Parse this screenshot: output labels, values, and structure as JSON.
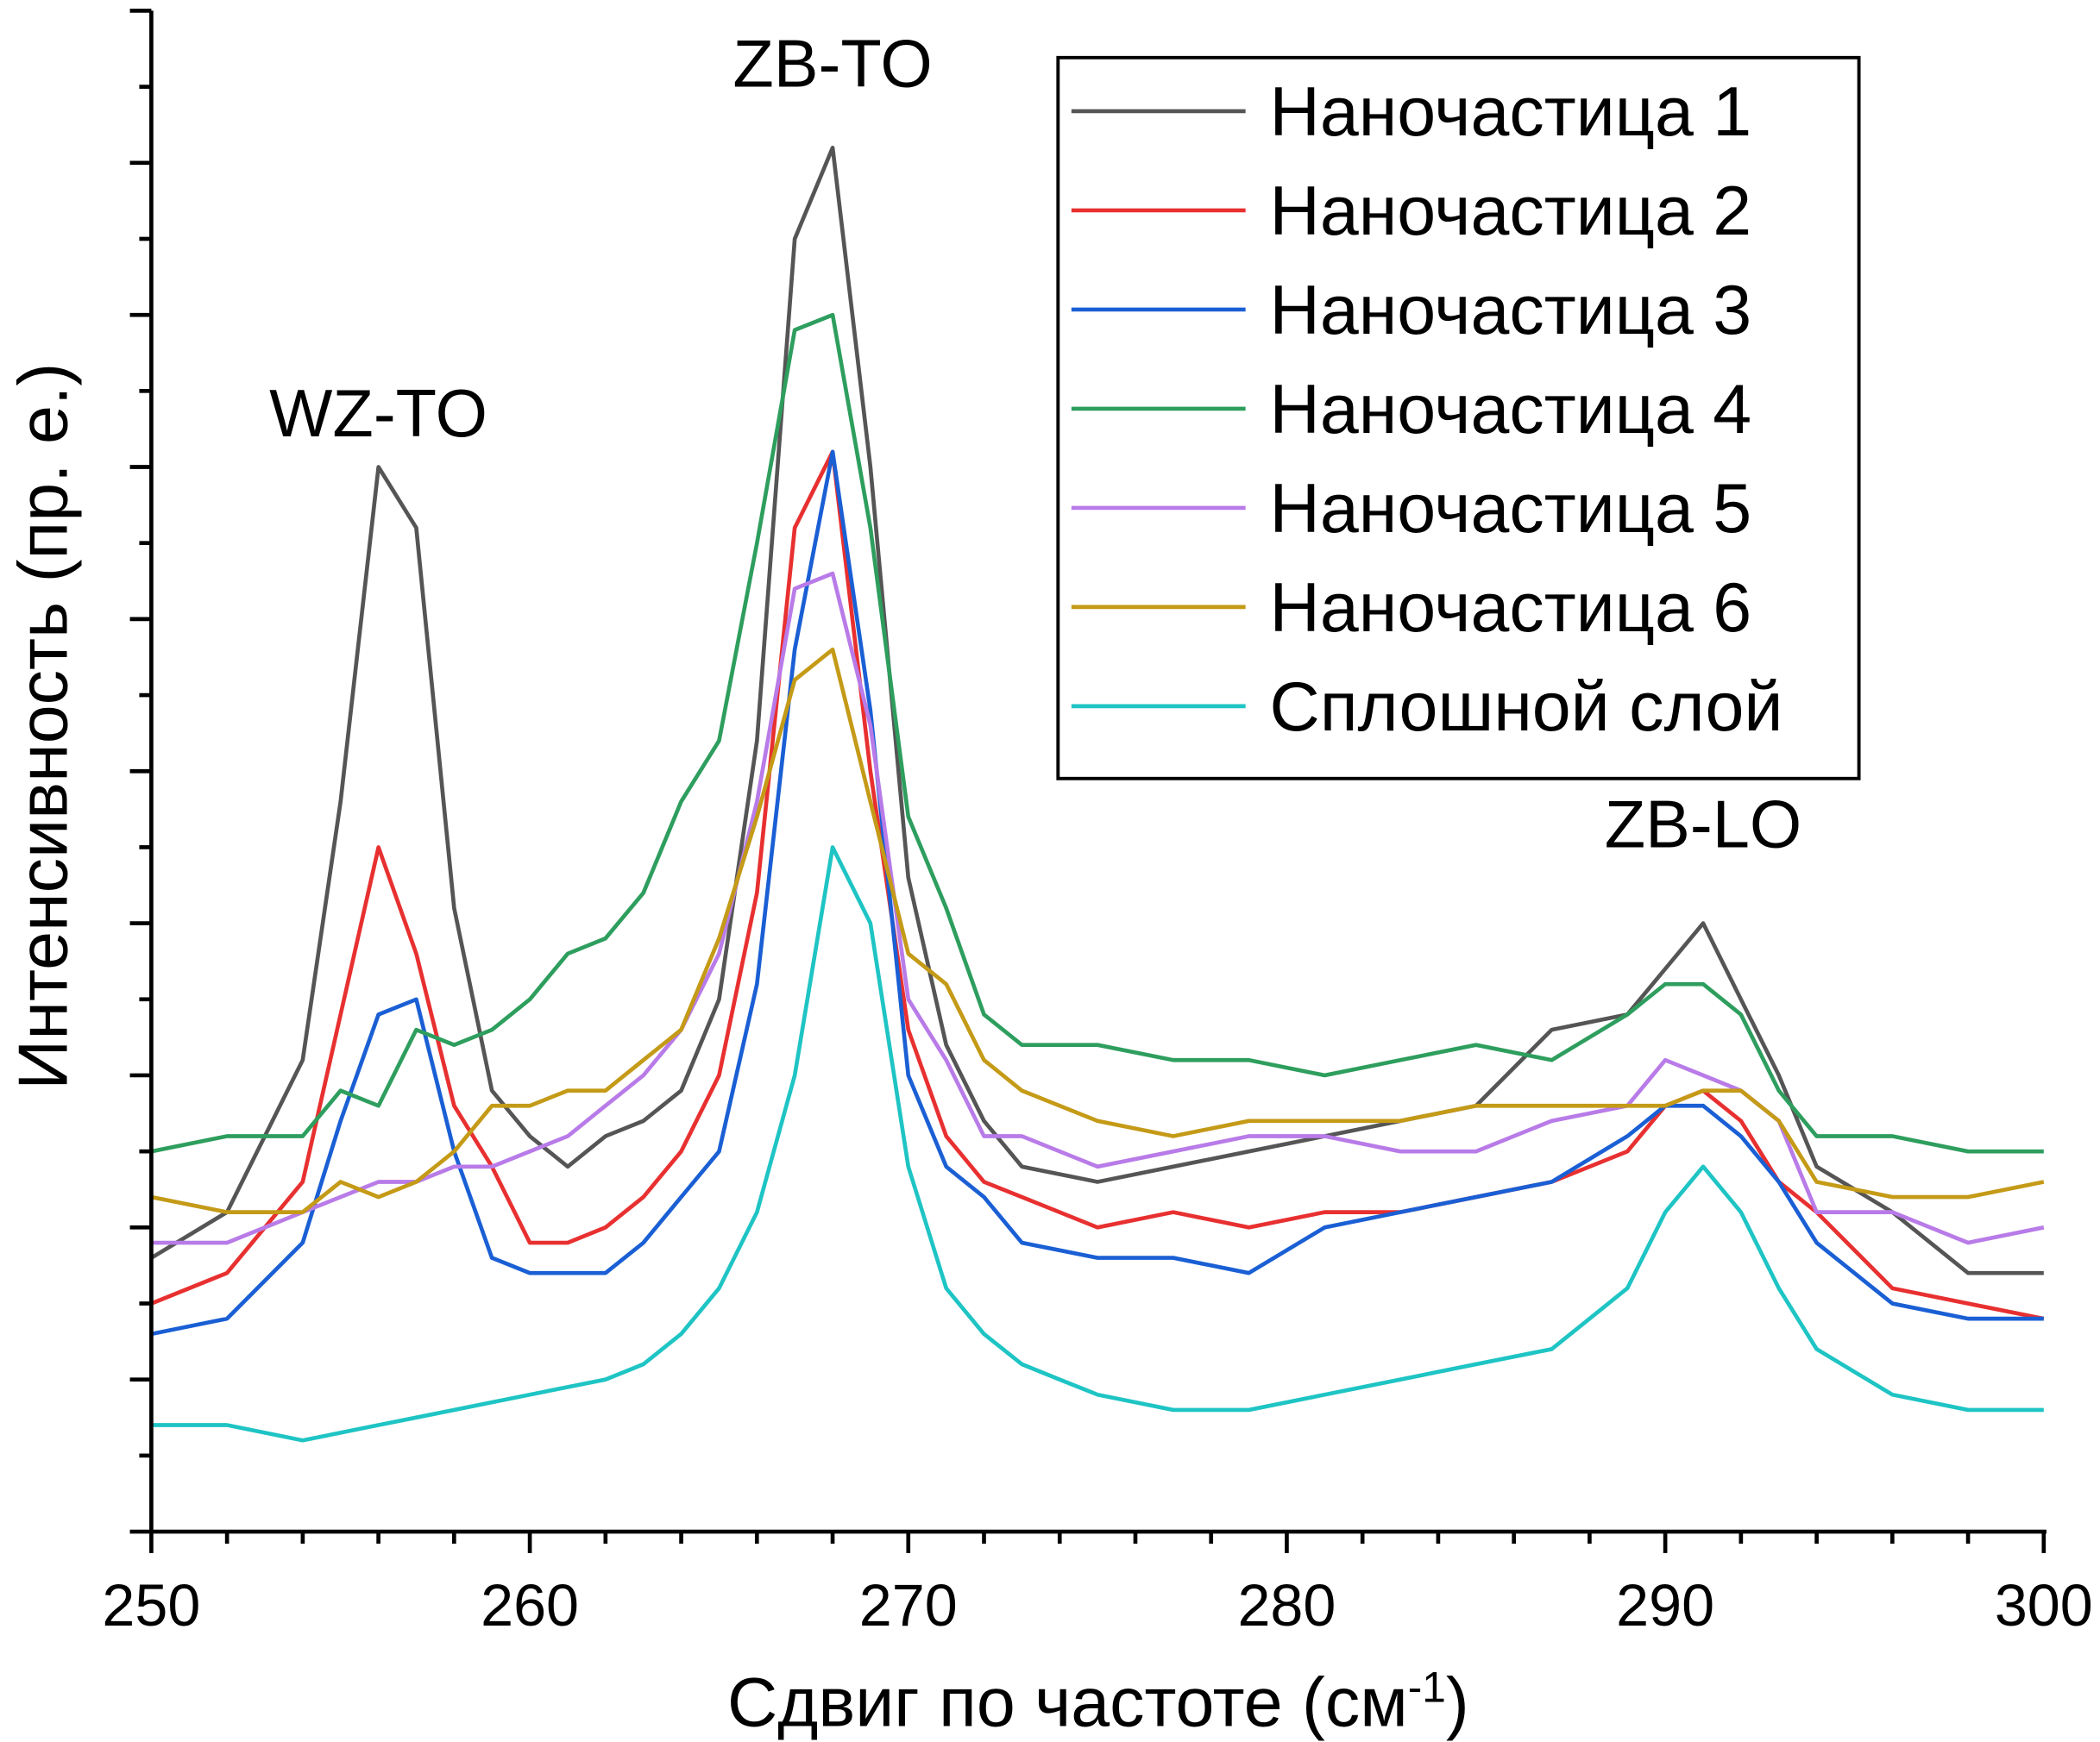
{
  "chart_data": {
    "type": "line",
    "xlabel": "Сдвиг по частоте (см",
    "xlabel_sup": "-1",
    "xlabel_end": ")",
    "ylabel": "Интенсивность (пр. е.)",
    "xlim": [
      250,
      300
    ],
    "ylim": [
      0,
      10
    ],
    "x_ticks": [
      "250",
      "260",
      "270",
      "280",
      "290",
      "300"
    ],
    "y_ticks_labeled": false,
    "grid": false,
    "legend_placement": "top-right",
    "annotations": [
      {
        "text": "WZ-TO",
        "x": 256,
        "y": 7.2
      },
      {
        "text": "ZB-TO",
        "x": 268,
        "y": 9.5
      },
      {
        "text": "ZB-LO",
        "x": 291,
        "y": 4.5
      }
    ],
    "series": [
      {
        "name": "Наночастица 1",
        "color": "#555555",
        "x": [
          250,
          252,
          254,
          255,
          256,
          257,
          258,
          259,
          260,
          261,
          262,
          263,
          264,
          265,
          266,
          267,
          268,
          269,
          270,
          271,
          272,
          273,
          275,
          277,
          279,
          281,
          283,
          285,
          287,
          289,
          290,
          291,
          292,
          293,
          294,
          296,
          298,
          300
        ],
        "y": [
          1.8,
          2.1,
          3.1,
          4.8,
          7.0,
          6.6,
          4.1,
          2.9,
          2.6,
          2.4,
          2.6,
          2.7,
          2.9,
          3.5,
          5.2,
          8.5,
          9.1,
          7.0,
          4.3,
          3.2,
          2.7,
          2.4,
          2.3,
          2.4,
          2.5,
          2.6,
          2.7,
          2.8,
          3.3,
          3.4,
          3.7,
          4.0,
          3.5,
          3.0,
          2.4,
          2.1,
          1.7,
          1.7
        ]
      },
      {
        "name": "Наночастица 2",
        "color": "#e83030",
        "x": [
          250,
          252,
          254,
          255,
          256,
          257,
          258,
          259,
          260,
          261,
          262,
          263,
          264,
          265,
          266,
          267,
          268,
          269,
          270,
          271,
          272,
          273,
          275,
          277,
          279,
          281,
          283,
          285,
          287,
          289,
          290,
          291,
          292,
          293,
          294,
          296,
          298,
          300
        ],
        "y": [
          1.5,
          1.7,
          2.3,
          3.4,
          4.5,
          3.8,
          2.8,
          2.4,
          1.9,
          1.9,
          2.0,
          2.2,
          2.5,
          3.0,
          4.2,
          6.6,
          7.1,
          5.0,
          3.3,
          2.6,
          2.3,
          2.2,
          2.0,
          2.1,
          2.0,
          2.1,
          2.1,
          2.2,
          2.3,
          2.5,
          2.8,
          2.9,
          2.7,
          2.3,
          2.1,
          1.6,
          1.5,
          1.4
        ]
      },
      {
        "name": "Наночастица 3",
        "color": "#1a5fd4",
        "x": [
          250,
          252,
          254,
          255,
          256,
          257,
          258,
          259,
          260,
          261,
          262,
          263,
          264,
          265,
          266,
          267,
          268,
          269,
          270,
          271,
          272,
          273,
          275,
          277,
          279,
          281,
          283,
          285,
          287,
          289,
          290,
          291,
          292,
          293,
          294,
          296,
          298,
          300
        ],
        "y": [
          1.3,
          1.4,
          1.9,
          2.7,
          3.4,
          3.5,
          2.5,
          1.8,
          1.7,
          1.7,
          1.7,
          1.9,
          2.2,
          2.5,
          3.6,
          5.8,
          7.1,
          5.4,
          3.0,
          2.4,
          2.2,
          1.9,
          1.8,
          1.8,
          1.7,
          2.0,
          2.1,
          2.2,
          2.3,
          2.6,
          2.8,
          2.8,
          2.6,
          2.3,
          1.9,
          1.5,
          1.4,
          1.4
        ]
      },
      {
        "name": "Наночастица 4",
        "color": "#2e9e5e",
        "x": [
          250,
          252,
          254,
          255,
          256,
          257,
          258,
          259,
          260,
          261,
          262,
          263,
          264,
          265,
          266,
          267,
          268,
          269,
          270,
          271,
          272,
          273,
          275,
          277,
          279,
          281,
          283,
          285,
          287,
          289,
          290,
          291,
          292,
          293,
          294,
          296,
          298,
          300
        ],
        "y": [
          2.5,
          2.6,
          2.6,
          2.9,
          2.8,
          3.3,
          3.2,
          3.3,
          3.5,
          3.8,
          3.9,
          4.2,
          4.8,
          5.2,
          6.5,
          7.9,
          8.0,
          6.6,
          4.7,
          4.1,
          3.4,
          3.2,
          3.2,
          3.1,
          3.1,
          3.0,
          3.1,
          3.2,
          3.1,
          3.4,
          3.6,
          3.6,
          3.4,
          2.9,
          2.6,
          2.6,
          2.5,
          2.5
        ]
      },
      {
        "name": "Наночастица 5",
        "color": "#b87be8",
        "x": [
          250,
          252,
          254,
          255,
          256,
          257,
          258,
          259,
          260,
          261,
          262,
          263,
          264,
          265,
          266,
          267,
          268,
          269,
          270,
          271,
          272,
          273,
          275,
          277,
          279,
          281,
          283,
          285,
          287,
          289,
          290,
          291,
          292,
          293,
          294,
          296,
          298,
          300
        ],
        "y": [
          1.9,
          1.9,
          2.1,
          2.2,
          2.3,
          2.3,
          2.4,
          2.4,
          2.5,
          2.6,
          2.8,
          3.0,
          3.3,
          3.8,
          4.8,
          6.2,
          6.3,
          5.3,
          3.5,
          3.1,
          2.6,
          2.6,
          2.4,
          2.5,
          2.6,
          2.6,
          2.5,
          2.5,
          2.7,
          2.8,
          3.1,
          3.0,
          2.9,
          2.7,
          2.1,
          2.1,
          1.9,
          2.0
        ]
      },
      {
        "name": "Наночастица 6",
        "color": "#c49a17",
        "x": [
          250,
          252,
          254,
          255,
          256,
          257,
          258,
          259,
          260,
          261,
          262,
          263,
          264,
          265,
          266,
          267,
          268,
          269,
          270,
          271,
          272,
          273,
          275,
          277,
          279,
          281,
          283,
          285,
          287,
          289,
          290,
          291,
          292,
          293,
          294,
          296,
          298,
          300
        ],
        "y": [
          2.2,
          2.1,
          2.1,
          2.3,
          2.2,
          2.3,
          2.5,
          2.8,
          2.8,
          2.9,
          2.9,
          3.1,
          3.3,
          3.9,
          4.7,
          5.6,
          5.8,
          4.8,
          3.8,
          3.6,
          3.1,
          2.9,
          2.7,
          2.6,
          2.7,
          2.7,
          2.7,
          2.8,
          2.8,
          2.8,
          2.8,
          2.9,
          2.9,
          2.7,
          2.3,
          2.2,
          2.2,
          2.3
        ]
      },
      {
        "name": "Сплошной слой",
        "color": "#1fc4c4",
        "x": [
          250,
          252,
          254,
          256,
          258,
          260,
          262,
          263,
          264,
          265,
          266,
          267,
          268,
          269,
          270,
          271,
          272,
          273,
          274,
          275,
          277,
          279,
          281,
          283,
          285,
          287,
          289,
          290,
          291,
          292,
          293,
          294,
          296,
          298,
          300
        ],
        "y": [
          0.7,
          0.7,
          0.6,
          0.7,
          0.8,
          0.9,
          1.0,
          1.1,
          1.3,
          1.6,
          2.1,
          3.0,
          4.5,
          4.0,
          2.4,
          1.6,
          1.3,
          1.1,
          1.0,
          0.9,
          0.8,
          0.8,
          0.9,
          1.0,
          1.1,
          1.2,
          1.6,
          2.1,
          2.4,
          2.1,
          1.6,
          1.2,
          0.9,
          0.8,
          0.8
        ]
      }
    ]
  }
}
